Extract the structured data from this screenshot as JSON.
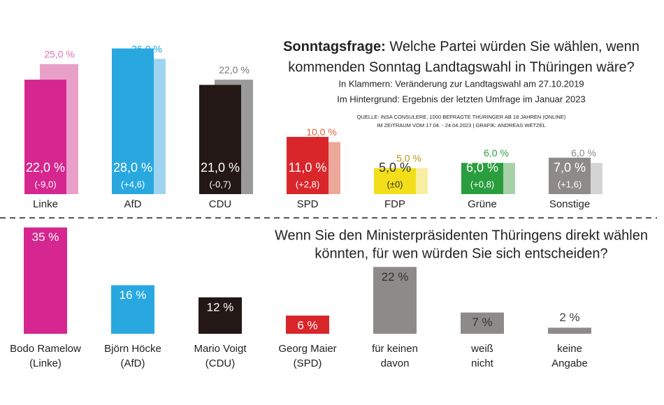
{
  "chart_data": [
    {
      "type": "bar",
      "title_prefix": "Sonntagsfrage:",
      "title": [
        "Welche Partei würden Sie wählen, wenn",
        "kommenden Sonntag Landtagswahl in Thüringen wäre?"
      ],
      "subtitle": [
        "In Klammern: Veränderung zur Landtagswahl am 27.10.2019",
        "Im Hintergrund: Ergebnis der letzten Umfrage im Januar 2023"
      ],
      "source": [
        "QUELLE: INSA CONSULERE, 1000 BEFRAGTE THÜRINGER AB 18 JAHREN (ONLINE)",
        "IM ZEITRAUM VOM 17.04. - 24.04.2023 | GRAFIK: ANDREAS WETZEL"
      ],
      "categories": [
        "Linke",
        "AfD",
        "CDU",
        "SPD",
        "FDP",
        "Grüne",
        "Sonstige"
      ],
      "series": [
        {
          "values": [
            22,
            28,
            21,
            11,
            5,
            6,
            7
          ],
          "value_labels": [
            "22,0 %",
            "28,0 %",
            "21,0 %",
            "11,0 %",
            "5,0 %",
            "6,0 %",
            "7,0 %"
          ],
          "changes": [
            "(-9,0)",
            "(+4,6)",
            "(-0,7)",
            "(+2,8)",
            "(±0)",
            "(+0,8)",
            "(+1,6)"
          ],
          "colors": [
            "#d6268f",
            "#29a8e0",
            "#231815",
            "#d9262b",
            "#f2de1a",
            "#2a9d3e",
            "#8e8a8a"
          ],
          "label_colors": [
            "#ffffff",
            "#ffffff",
            "#ffffff",
            "#ffffff",
            "#333333",
            "#ffffff",
            "#ffffff"
          ]
        },
        {
          "values": [
            25,
            26,
            22,
            10,
            5,
            6,
            6
          ],
          "value_labels": [
            "25,0 %",
            "26,0 %",
            "22,0 %",
            "10,0 %",
            "5,0 %",
            "6,0 %",
            "6,0 %"
          ],
          "colors": [
            "#e8a0c8",
            "#9fd4f0",
            "#9a9a9a",
            "#eba89a",
            "#f7eea0",
            "#a6d1a9",
            "#d4d4d4"
          ],
          "label_colors": [
            "#e070b0",
            "#1aa0d8",
            "#777777",
            "#e0603a",
            "#b89a10",
            "#2a9d3e",
            "#888888"
          ]
        }
      ]
    },
    {
      "type": "bar",
      "title": [
        "Wenn Sie den Ministerpräsidenten Thüringens direkt wählen",
        "könnten, für wen würden Sie sich entscheiden?"
      ],
      "categories": [
        [
          "Bodo Ramelow",
          "(Linke)"
        ],
        [
          "Björn Höcke",
          "(AfD)"
        ],
        [
          "Mario Voigt",
          "(CDU)"
        ],
        [
          "Georg Maier",
          "(SPD)"
        ],
        [
          "für keinen",
          "davon"
        ],
        [
          "weiß",
          "nicht"
        ],
        [
          "keine",
          "Angabe"
        ]
      ],
      "values": [
        35,
        16,
        12,
        6,
        22,
        7,
        2
      ],
      "value_labels": [
        "35 %",
        "16 %",
        "12 %",
        "6 %",
        "22 %",
        "7 %",
        "2 %"
      ],
      "colors": [
        "#d6268f",
        "#29a8e0",
        "#231815",
        "#d9262b",
        "#8e8a8a",
        "#8e8a8a",
        "#8e8a8a"
      ],
      "label_colors": [
        "#ffffff",
        "#ffffff",
        "#ffffff",
        "#ffffff",
        "#333333",
        "#333333",
        "#333333"
      ]
    }
  ]
}
